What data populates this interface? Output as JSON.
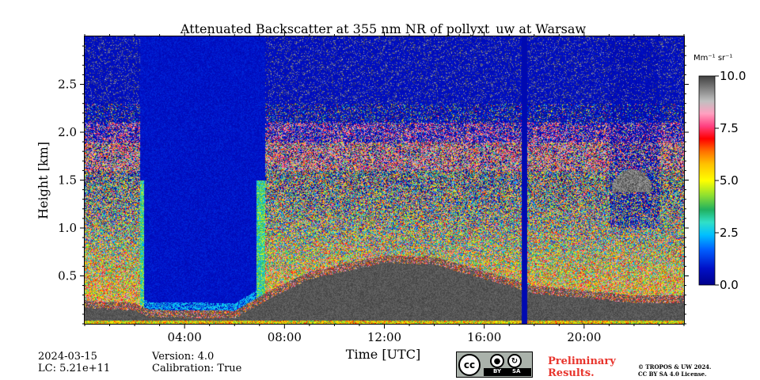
{
  "chart_data": {
    "type": "heatmap",
    "title": "Attenuated Backscatter at 355 nm NR of pollyxt_uw at Warsaw",
    "xlabel": "Time [UTC]",
    "ylabel": "Height [km]",
    "x_range_hours": [
      0,
      24
    ],
    "y_range_km": [
      0,
      3.0
    ],
    "x_ticks": [
      {
        "hour": 4,
        "label": "04:00"
      },
      {
        "hour": 8,
        "label": "08:00"
      },
      {
        "hour": 12,
        "label": "12:00"
      },
      {
        "hour": 16,
        "label": "16:00"
      },
      {
        "hour": 20,
        "label": "20:00"
      }
    ],
    "y_ticks": [
      {
        "km": 0.5,
        "label": "0.5"
      },
      {
        "km": 1.0,
        "label": "1.0"
      },
      {
        "km": 1.5,
        "label": "1.5"
      },
      {
        "km": 2.0,
        "label": "2.0"
      },
      {
        "km": 2.5,
        "label": "2.5"
      }
    ],
    "colorbar": {
      "unit_label": "Mm⁻¹ sr⁻¹",
      "range": [
        0,
        10
      ],
      "ticks": [
        {
          "value": 0,
          "label": "0.0"
        },
        {
          "value": 2.5,
          "label": "2.5"
        },
        {
          "value": 5,
          "label": "5.0"
        },
        {
          "value": 7.5,
          "label": "7.5"
        },
        {
          "value": 10,
          "label": "10.0"
        }
      ]
    },
    "features": {
      "boundary_layer_top_km": [
        {
          "h": 0.0,
          "top": 0.25
        },
        {
          "h": 2.0,
          "top": 0.22
        },
        {
          "h": 2.6,
          "top": 0.15
        },
        {
          "h": 6.0,
          "top": 0.14
        },
        {
          "h": 7.4,
          "top": 0.35
        },
        {
          "h": 9.0,
          "top": 0.55
        },
        {
          "h": 12.0,
          "top": 0.72
        },
        {
          "h": 14.0,
          "top": 0.7
        },
        {
          "h": 16.0,
          "top": 0.55
        },
        {
          "h": 18.0,
          "top": 0.4
        },
        {
          "h": 22.0,
          "top": 0.3
        },
        {
          "h": 24.0,
          "top": 0.3
        }
      ],
      "clear_gap_hours": [
        2.2,
        7.2
      ],
      "data_gap_hours": [
        17.5,
        17.7
      ],
      "elevated_aerosol_layer_km": [
        0.5,
        2.0
      ],
      "cloud": {
        "start_hour": 21.1,
        "end_hour": 22.7,
        "top_km": 1.62
      }
    }
  },
  "footer": {
    "date": "2024-03-15",
    "lc": "LC: 5.21e+11",
    "version": "Version: 4.0",
    "calibration": "Calibration: True",
    "license_badge": {
      "cc": "cc",
      "by": "BY",
      "sa": "SA"
    },
    "preliminary_line1": "Preliminary",
    "preliminary_line2": "Results.",
    "copyright_line1": "© TROPOS & UW 2024.",
    "copyright_line2": "CC BY SA 4.0 License."
  }
}
